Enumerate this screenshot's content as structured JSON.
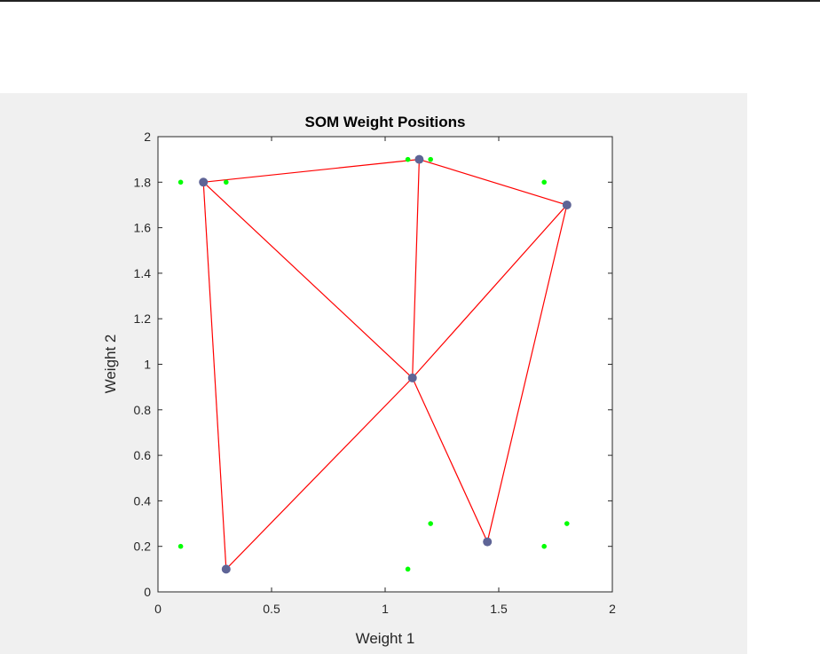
{
  "chart_data": {
    "type": "scatter",
    "title": "SOM Weight Positions",
    "xlabel": "Weight 1",
    "ylabel": "Weight 2",
    "xlim": [
      0,
      2
    ],
    "ylim": [
      0,
      2
    ],
    "xticks": [
      "0",
      "0.5",
      "1",
      "1.5",
      "2"
    ],
    "yticks": [
      "0",
      "0.2",
      "0.4",
      "0.6",
      "0.8",
      "1",
      "1.2",
      "1.4",
      "1.6",
      "1.8",
      "2"
    ],
    "grid": false,
    "input_points": {
      "color": "#00ff00",
      "points": [
        [
          0.1,
          1.8
        ],
        [
          0.3,
          1.8
        ],
        [
          1.1,
          1.9
        ],
        [
          1.2,
          1.9
        ],
        [
          1.7,
          1.8
        ],
        [
          0.1,
          0.2
        ],
        [
          1.1,
          0.1
        ],
        [
          1.2,
          0.3
        ],
        [
          1.7,
          0.2
        ],
        [
          1.8,
          0.3
        ]
      ]
    },
    "neurons": {
      "color": "#5e6496",
      "points": [
        [
          0.2,
          1.8
        ],
        [
          1.15,
          1.9
        ],
        [
          1.8,
          1.7
        ],
        [
          1.12,
          0.94
        ],
        [
          0.3,
          0.1
        ],
        [
          1.45,
          0.22
        ]
      ]
    },
    "links": {
      "color": "#ff0000",
      "pairs": [
        [
          0,
          1
        ],
        [
          1,
          2
        ],
        [
          0,
          3
        ],
        [
          1,
          3
        ],
        [
          2,
          3
        ],
        [
          0,
          4
        ],
        [
          3,
          4
        ],
        [
          3,
          5
        ],
        [
          2,
          5
        ]
      ]
    }
  }
}
